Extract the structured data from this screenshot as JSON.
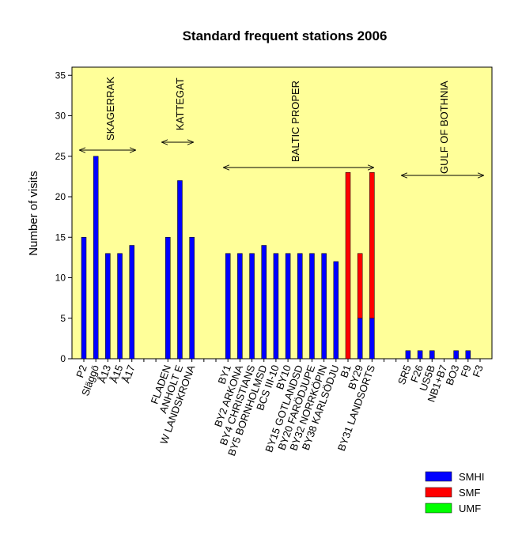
{
  "chart_data": {
    "type": "stacked_bar",
    "title": "Standard frequent stations 2006",
    "y_label": "Number of visits",
    "categories": [
      "P2",
      "Släggö",
      "Å13",
      "Å15",
      "Å17",
      null,
      null,
      "FLADEN",
      "ANHOLT E",
      "W LANDSKRONA",
      null,
      null,
      "BY1",
      "BY2 ARKONA",
      "BY4 CHRISTIANS",
      "BY5 BORNHOLMSD",
      "BCS III-10",
      "BY10",
      "BY15 GOTLANDSD",
      "BY20 FARÖDJUPE",
      "BY32 NORRKÖPIN",
      "BY38 KARLSÖDJU",
      "B1",
      "BY29",
      "BY31 LANDSORTS",
      null,
      null,
      "SR5",
      "F26",
      "US5B",
      "NB1+B7",
      "BO3",
      "F9",
      "F3"
    ],
    "series": [
      {
        "name": "SMHI",
        "color": "#0000ff",
        "values": [
          15,
          25,
          13,
          13,
          14,
          null,
          null,
          15,
          22,
          15,
          null,
          null,
          13,
          13,
          13,
          14,
          13,
          13,
          13,
          13,
          13,
          12,
          0,
          5,
          5,
          null,
          null,
          1,
          1,
          1,
          0,
          1,
          1,
          0
        ]
      },
      {
        "name": "SMF",
        "color": "#ff0000",
        "values": [
          0,
          0,
          0,
          0,
          0,
          null,
          null,
          0,
          0,
          0,
          null,
          null,
          0,
          0,
          0,
          0,
          0,
          0,
          0,
          0,
          0,
          0,
          23,
          8,
          18,
          null,
          null,
          0,
          0,
          0,
          0,
          0,
          0,
          0
        ]
      },
      {
        "name": "UMF",
        "color": "#00ff00",
        "values": [
          0,
          0,
          0,
          0,
          0,
          null,
          null,
          0,
          0,
          0,
          null,
          null,
          0,
          0,
          0,
          0,
          0,
          0,
          0,
          0,
          0,
          0,
          0,
          0,
          0,
          null,
          null,
          0,
          0,
          0,
          0,
          0,
          0,
          0
        ]
      }
    ],
    "ylim": [
      0,
      36
    ],
    "yticks": [
      0,
      5,
      10,
      15,
      20,
      25,
      30,
      35
    ],
    "annotations": [
      "SKAGERRAK",
      "KATTEGAT",
      "BALTIC PROPER",
      "GULF OF BOTHNIA"
    ],
    "background": "#ffff99"
  }
}
